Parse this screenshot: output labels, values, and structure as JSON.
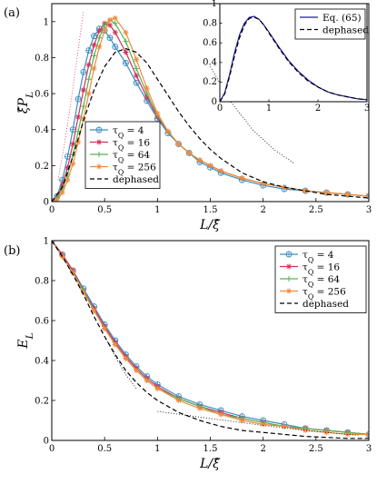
{
  "chart_data": [
    {
      "type": "line",
      "panel_label": "(a)",
      "xlabel": "L/ξ̂",
      "ylabel": "ξ̂P_L",
      "xlim": [
        0,
        3
      ],
      "ylim": [
        0,
        1.1
      ],
      "xticks": [
        "0",
        "0.5",
        "1",
        "1.5",
        "2",
        "2.5",
        "3"
      ],
      "yticks": [
        "0",
        "0.2",
        "0.4",
        "0.6",
        "0.8",
        "1"
      ],
      "legend_position": "lower-left",
      "series": [
        {
          "name": "τ_Q = 4",
          "color": "#3a8fc2",
          "marker": "circle-plus",
          "x": [
            0,
            0.05,
            0.1,
            0.15,
            0.2,
            0.25,
            0.3,
            0.35,
            0.4,
            0.45,
            0.5,
            0.55,
            0.6,
            0.7,
            0.8,
            0.9,
            1.0,
            1.1,
            1.2,
            1.3,
            1.4,
            1.5,
            1.6,
            1.8,
            2.0,
            2.2,
            2.4,
            2.6,
            2.8,
            3.0
          ],
          "y": [
            0,
            0.03,
            0.12,
            0.25,
            0.4,
            0.57,
            0.72,
            0.84,
            0.92,
            0.96,
            0.95,
            0.91,
            0.86,
            0.77,
            0.66,
            0.56,
            0.46,
            0.38,
            0.32,
            0.27,
            0.22,
            0.19,
            0.16,
            0.12,
            0.09,
            0.07,
            0.06,
            0.05,
            0.04,
            0.03
          ]
        },
        {
          "name": "τ_Q = 16",
          "color": "#d0315a",
          "marker": "star",
          "x": [
            0,
            0.05,
            0.1,
            0.15,
            0.2,
            0.25,
            0.3,
            0.35,
            0.4,
            0.45,
            0.5,
            0.55,
            0.6,
            0.7,
            0.8,
            0.9,
            1.0,
            1.1,
            1.2,
            1.3,
            1.4,
            1.5,
            1.6,
            1.8,
            2.0,
            2.2,
            2.4,
            2.6,
            2.8,
            3.0
          ],
          "y": [
            0,
            0.02,
            0.09,
            0.19,
            0.32,
            0.47,
            0.62,
            0.76,
            0.87,
            0.95,
            0.99,
            0.98,
            0.94,
            0.83,
            0.7,
            0.58,
            0.47,
            0.39,
            0.32,
            0.27,
            0.23,
            0.2,
            0.17,
            0.13,
            0.1,
            0.08,
            0.06,
            0.05,
            0.04,
            0.03
          ]
        },
        {
          "name": "τ_Q = 64",
          "color": "#55b355",
          "marker": "plus",
          "x": [
            0,
            0.05,
            0.1,
            0.15,
            0.2,
            0.25,
            0.3,
            0.35,
            0.4,
            0.45,
            0.5,
            0.55,
            0.6,
            0.7,
            0.8,
            0.9,
            1.0,
            1.1,
            1.2,
            1.3,
            1.4,
            1.5,
            1.6,
            1.8,
            2.0,
            2.2,
            2.4,
            2.6,
            2.8,
            3.0
          ],
          "y": [
            0,
            0.02,
            0.07,
            0.15,
            0.26,
            0.39,
            0.53,
            0.68,
            0.81,
            0.91,
            0.98,
            1.01,
            0.99,
            0.89,
            0.74,
            0.6,
            0.48,
            0.39,
            0.32,
            0.27,
            0.23,
            0.2,
            0.17,
            0.13,
            0.1,
            0.08,
            0.06,
            0.05,
            0.04,
            0.03
          ]
        },
        {
          "name": "τ_Q = 256",
          "color": "#f08a3c",
          "marker": "star",
          "x": [
            0,
            0.05,
            0.1,
            0.15,
            0.2,
            0.25,
            0.3,
            0.35,
            0.4,
            0.45,
            0.5,
            0.55,
            0.6,
            0.7,
            0.8,
            0.9,
            1.0,
            1.1,
            1.2,
            1.3,
            1.4,
            1.5,
            1.6,
            1.8,
            2.0,
            2.2,
            2.4,
            2.6,
            2.8,
            3.0
          ],
          "y": [
            0,
            0.01,
            0.05,
            0.12,
            0.21,
            0.33,
            0.46,
            0.6,
            0.74,
            0.86,
            0.95,
            1.01,
            1.02,
            0.94,
            0.79,
            0.63,
            0.49,
            0.39,
            0.32,
            0.27,
            0.23,
            0.2,
            0.17,
            0.13,
            0.1,
            0.08,
            0.06,
            0.05,
            0.04,
            0.03
          ]
        },
        {
          "name": "dephased",
          "color": "#000000",
          "dash": "5,3",
          "x": [
            0,
            0.1,
            0.2,
            0.3,
            0.4,
            0.5,
            0.6,
            0.7,
            0.8,
            0.9,
            1.0,
            1.1,
            1.2,
            1.3,
            1.4,
            1.5,
            1.6,
            1.8,
            2.0,
            2.2,
            2.4,
            2.6,
            2.8,
            3.0
          ],
          "y": [
            0,
            0.08,
            0.25,
            0.45,
            0.62,
            0.75,
            0.83,
            0.85,
            0.83,
            0.77,
            0.68,
            0.59,
            0.5,
            0.42,
            0.35,
            0.29,
            0.24,
            0.16,
            0.11,
            0.08,
            0.06,
            0.04,
            0.03,
            0.02
          ]
        },
        {
          "name": "",
          "color": "#e03050",
          "dash": "1,2",
          "x": [
            0.06,
            0.12,
            0.18,
            0.24,
            0.3
          ],
          "y": [
            0.12,
            0.32,
            0.55,
            0.8,
            1.06
          ]
        },
        {
          "name": "",
          "color": "#000000",
          "dash": "1,2",
          "x": [
            1.5,
            1.7,
            1.9,
            2.1,
            2.3
          ],
          "y": [
            0.75,
            0.55,
            0.4,
            0.29,
            0.21
          ]
        }
      ],
      "inset": {
        "xlim": [
          0,
          3
        ],
        "ylim": [
          0,
          1.0
        ],
        "xticks": [
          "0",
          "1",
          "2",
          "3"
        ],
        "yticks": [
          "0",
          "0.2",
          "0.4",
          "0.6",
          "0.8",
          "1"
        ],
        "legend_position": "top-right",
        "series": [
          {
            "name": "Eq. (65)",
            "color": "#1a1aa8",
            "x": [
              0,
              0.1,
              0.2,
              0.3,
              0.4,
              0.5,
              0.6,
              0.7,
              0.8,
              0.9,
              1.0,
              1.2,
              1.4,
              1.6,
              1.8,
              2.0,
              2.2,
              2.4,
              2.6,
              2.8,
              3.0
            ],
            "y": [
              0,
              0.09,
              0.28,
              0.5,
              0.68,
              0.8,
              0.86,
              0.87,
              0.84,
              0.78,
              0.71,
              0.56,
              0.42,
              0.31,
              0.22,
              0.15,
              0.1,
              0.07,
              0.05,
              0.03,
              0.02
            ]
          },
          {
            "name": "dephased",
            "color": "#000000",
            "dash": "5,3",
            "x": [
              0,
              0.1,
              0.2,
              0.3,
              0.4,
              0.5,
              0.6,
              0.7,
              0.8,
              0.9,
              1.0,
              1.2,
              1.4,
              1.6,
              1.8,
              2.0,
              2.2,
              2.4,
              2.6,
              2.8,
              3.0
            ],
            "y": [
              0,
              0.08,
              0.26,
              0.47,
              0.65,
              0.78,
              0.85,
              0.86,
              0.84,
              0.78,
              0.7,
              0.55,
              0.41,
              0.3,
              0.21,
              0.15,
              0.1,
              0.07,
              0.05,
              0.03,
              0.02
            ]
          }
        ]
      }
    },
    {
      "type": "line",
      "panel_label": "(b)",
      "xlabel": "L/ξ̂",
      "ylabel": "E_L",
      "xlim": [
        0,
        3
      ],
      "ylim": [
        0,
        1
      ],
      "xticks": [
        "0",
        "0.5",
        "1",
        "1.5",
        "2",
        "2.5",
        "3"
      ],
      "yticks": [
        "0",
        "0.2",
        "0.4",
        "0.6",
        "0.8",
        "1"
      ],
      "legend_position": "top-right",
      "series": [
        {
          "name": "τ_Q = 4",
          "color": "#3a8fc2",
          "marker": "circle-plus",
          "x": [
            0,
            0.1,
            0.2,
            0.3,
            0.4,
            0.5,
            0.6,
            0.7,
            0.8,
            0.9,
            1.0,
            1.2,
            1.4,
            1.6,
            1.8,
            2.0,
            2.2,
            2.4,
            2.6,
            2.8,
            3.0
          ],
          "y": [
            1.0,
            0.93,
            0.85,
            0.76,
            0.67,
            0.58,
            0.5,
            0.43,
            0.37,
            0.32,
            0.28,
            0.22,
            0.18,
            0.15,
            0.12,
            0.1,
            0.08,
            0.06,
            0.05,
            0.04,
            0.03
          ]
        },
        {
          "name": "τ_Q = 16",
          "color": "#d0315a",
          "marker": "star",
          "x": [
            0,
            0.1,
            0.2,
            0.3,
            0.4,
            0.5,
            0.6,
            0.7,
            0.8,
            0.9,
            1.0,
            1.2,
            1.4,
            1.6,
            1.8,
            2.0,
            2.2,
            2.4,
            2.6,
            2.8,
            3.0
          ],
          "y": [
            1.0,
            0.93,
            0.85,
            0.75,
            0.66,
            0.57,
            0.49,
            0.42,
            0.36,
            0.31,
            0.27,
            0.21,
            0.17,
            0.14,
            0.11,
            0.09,
            0.07,
            0.06,
            0.05,
            0.04,
            0.03
          ]
        },
        {
          "name": "τ_Q = 64",
          "color": "#55b355",
          "marker": "plus",
          "x": [
            0,
            0.1,
            0.2,
            0.3,
            0.4,
            0.5,
            0.6,
            0.7,
            0.8,
            0.9,
            1.0,
            1.2,
            1.4,
            1.6,
            1.8,
            2.0,
            2.2,
            2.4,
            2.6,
            2.8,
            3.0
          ],
          "y": [
            1.0,
            0.92,
            0.84,
            0.75,
            0.65,
            0.56,
            0.48,
            0.41,
            0.35,
            0.3,
            0.26,
            0.21,
            0.17,
            0.13,
            0.11,
            0.09,
            0.07,
            0.06,
            0.05,
            0.04,
            0.03
          ]
        },
        {
          "name": "τ_Q = 256",
          "color": "#f08a3c",
          "marker": "star",
          "x": [
            0,
            0.1,
            0.2,
            0.3,
            0.4,
            0.5,
            0.6,
            0.7,
            0.8,
            0.9,
            1.0,
            1.2,
            1.4,
            1.6,
            1.8,
            2.0,
            2.2,
            2.4,
            2.6,
            2.8,
            3.0
          ],
          "y": [
            1.0,
            0.92,
            0.84,
            0.74,
            0.65,
            0.56,
            0.48,
            0.41,
            0.35,
            0.3,
            0.26,
            0.2,
            0.16,
            0.13,
            0.1,
            0.08,
            0.07,
            0.05,
            0.04,
            0.03,
            0.03
          ]
        },
        {
          "name": "dephased",
          "color": "#000000",
          "dash": "5,3",
          "x": [
            0,
            0.1,
            0.2,
            0.3,
            0.4,
            0.5,
            0.6,
            0.7,
            0.8,
            0.9,
            1.0,
            1.2,
            1.4,
            1.6,
            1.8,
            2.0,
            2.2,
            2.4,
            2.6,
            2.8,
            3.0
          ],
          "y": [
            1.0,
            0.92,
            0.83,
            0.73,
            0.62,
            0.52,
            0.43,
            0.35,
            0.29,
            0.24,
            0.2,
            0.14,
            0.1,
            0.07,
            0.05,
            0.04,
            0.03,
            0.02,
            0.015,
            0.01,
            0.01
          ]
        },
        {
          "name": "",
          "color": "#000000",
          "dash": "1,2",
          "x": [
            0.5,
            0.6,
            0.7,
            0.8
          ],
          "y": [
            0.52,
            0.42,
            0.33,
            0.26
          ]
        },
        {
          "name": "",
          "color": "#000000",
          "dash": "1,2",
          "x": [
            1.0,
            1.5,
            2.0,
            2.5,
            2.9
          ],
          "y": [
            0.145,
            0.11,
            0.075,
            0.045,
            0.025
          ]
        }
      ]
    }
  ]
}
